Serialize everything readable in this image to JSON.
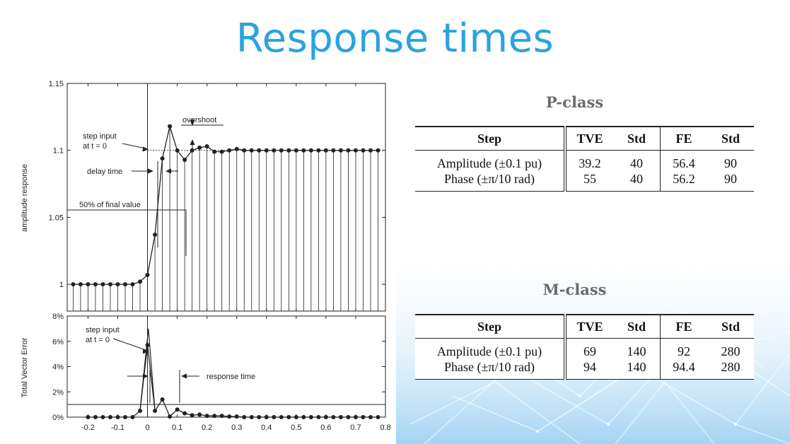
{
  "slide": {
    "title": "Response times"
  },
  "colors": {
    "title": "#2aa3de",
    "table_title": "#6b6b6b",
    "background_network": "#8cc8ee"
  },
  "chart_data": [
    {
      "type": "line",
      "ylabel": "amplitude response",
      "xlim": [
        -0.27,
        0.8
      ],
      "ylim": [
        0.98,
        1.15
      ],
      "yticks": [
        "1",
        "1.05",
        "1.1",
        "1.15"
      ],
      "annotations": [
        "step input",
        "at t = 0",
        "delay time",
        "overshoot",
        "50% of final value"
      ],
      "series": [
        {
          "x": [
            -0.25,
            -0.225,
            -0.2,
            -0.175,
            -0.15,
            -0.125,
            -0.1,
            -0.075,
            -0.05,
            -0.025,
            0,
            0.025,
            0.05,
            0.075,
            0.1,
            0.125,
            0.15,
            0.175,
            0.2,
            0.225,
            0.25,
            0.275,
            0.3,
            0.325,
            0.35,
            0.375,
            0.4,
            0.425,
            0.45,
            0.475,
            0.5,
            0.525,
            0.55,
            0.575,
            0.6,
            0.625,
            0.65,
            0.675,
            0.7,
            0.725,
            0.75,
            0.775
          ],
          "values": [
            1,
            1,
            1,
            1,
            1,
            1,
            1,
            1,
            1,
            1.002,
            1.007,
            1.037,
            1.094,
            1.118,
            1.1,
            1.093,
            1.1,
            1.102,
            1.103,
            1.099,
            1.099,
            1.1,
            1.101,
            1.1,
            1.1,
            1.1,
            1.1,
            1.1,
            1.1,
            1.1,
            1.1,
            1.1,
            1.1,
            1.1,
            1.1,
            1.1,
            1.1,
            1.1,
            1.1,
            1.1,
            1.1,
            1.1
          ]
        }
      ]
    },
    {
      "type": "line",
      "ylabel": "Total Vector Error",
      "xlim": [
        -0.27,
        0.8
      ],
      "ylim": [
        0,
        8
      ],
      "yticks": [
        "0%",
        "2%",
        "4%",
        "6%",
        "8%"
      ],
      "xticks": [
        "-0.2",
        "-0.1",
        "0",
        "0.1",
        "0.2",
        "0.3",
        "0.4",
        "0.5",
        "0.6",
        "0.7",
        "0.8"
      ],
      "annotations": [
        "step input",
        "at t = 0",
        "response time"
      ],
      "series": [
        {
          "x": [
            -0.2,
            -0.175,
            -0.15,
            -0.125,
            -0.1,
            -0.075,
            -0.05,
            -0.025,
            0,
            0.025,
            0.05,
            0.075,
            0.1,
            0.125,
            0.15,
            0.175,
            0.2,
            0.225,
            0.25,
            0.275,
            0.3,
            0.325,
            0.35,
            0.375,
            0.4,
            0.425,
            0.45,
            0.475,
            0.5,
            0.525,
            0.55,
            0.575,
            0.6,
            0.625,
            0.65,
            0.675,
            0.7,
            0.725,
            0.75,
            0.775
          ],
          "values": [
            0,
            0,
            0,
            0,
            0,
            0,
            0,
            0.5,
            5.7,
            0.5,
            1.4,
            0.05,
            0.6,
            0.3,
            0.15,
            0.2,
            0.1,
            0.1,
            0.1,
            0.05,
            0.05,
            0,
            0,
            0,
            0,
            0,
            0,
            0,
            0,
            0,
            0,
            0,
            0,
            0,
            0,
            0,
            0,
            0,
            0,
            0
          ]
        }
      ]
    }
  ],
  "tables": [
    {
      "title": "P-class",
      "headers": [
        "Step",
        "TVE",
        "Std",
        "FE",
        "Std"
      ],
      "rows": [
        [
          "Amplitude (±0.1 pu)",
          "39.2",
          "40",
          "56.4",
          "90"
        ],
        [
          "Phase (±π/10 rad)",
          "55",
          "40",
          "56.2",
          "90"
        ]
      ]
    },
    {
      "title": "M-class",
      "headers": [
        "Step",
        "TVE",
        "Std",
        "FE",
        "Std"
      ],
      "rows": [
        [
          "Amplitude (±0.1 pu)",
          "69",
          "140",
          "92",
          "280"
        ],
        [
          "Phase (±π/10 rad)",
          "94",
          "140",
          "94.4",
          "280"
        ]
      ]
    }
  ]
}
